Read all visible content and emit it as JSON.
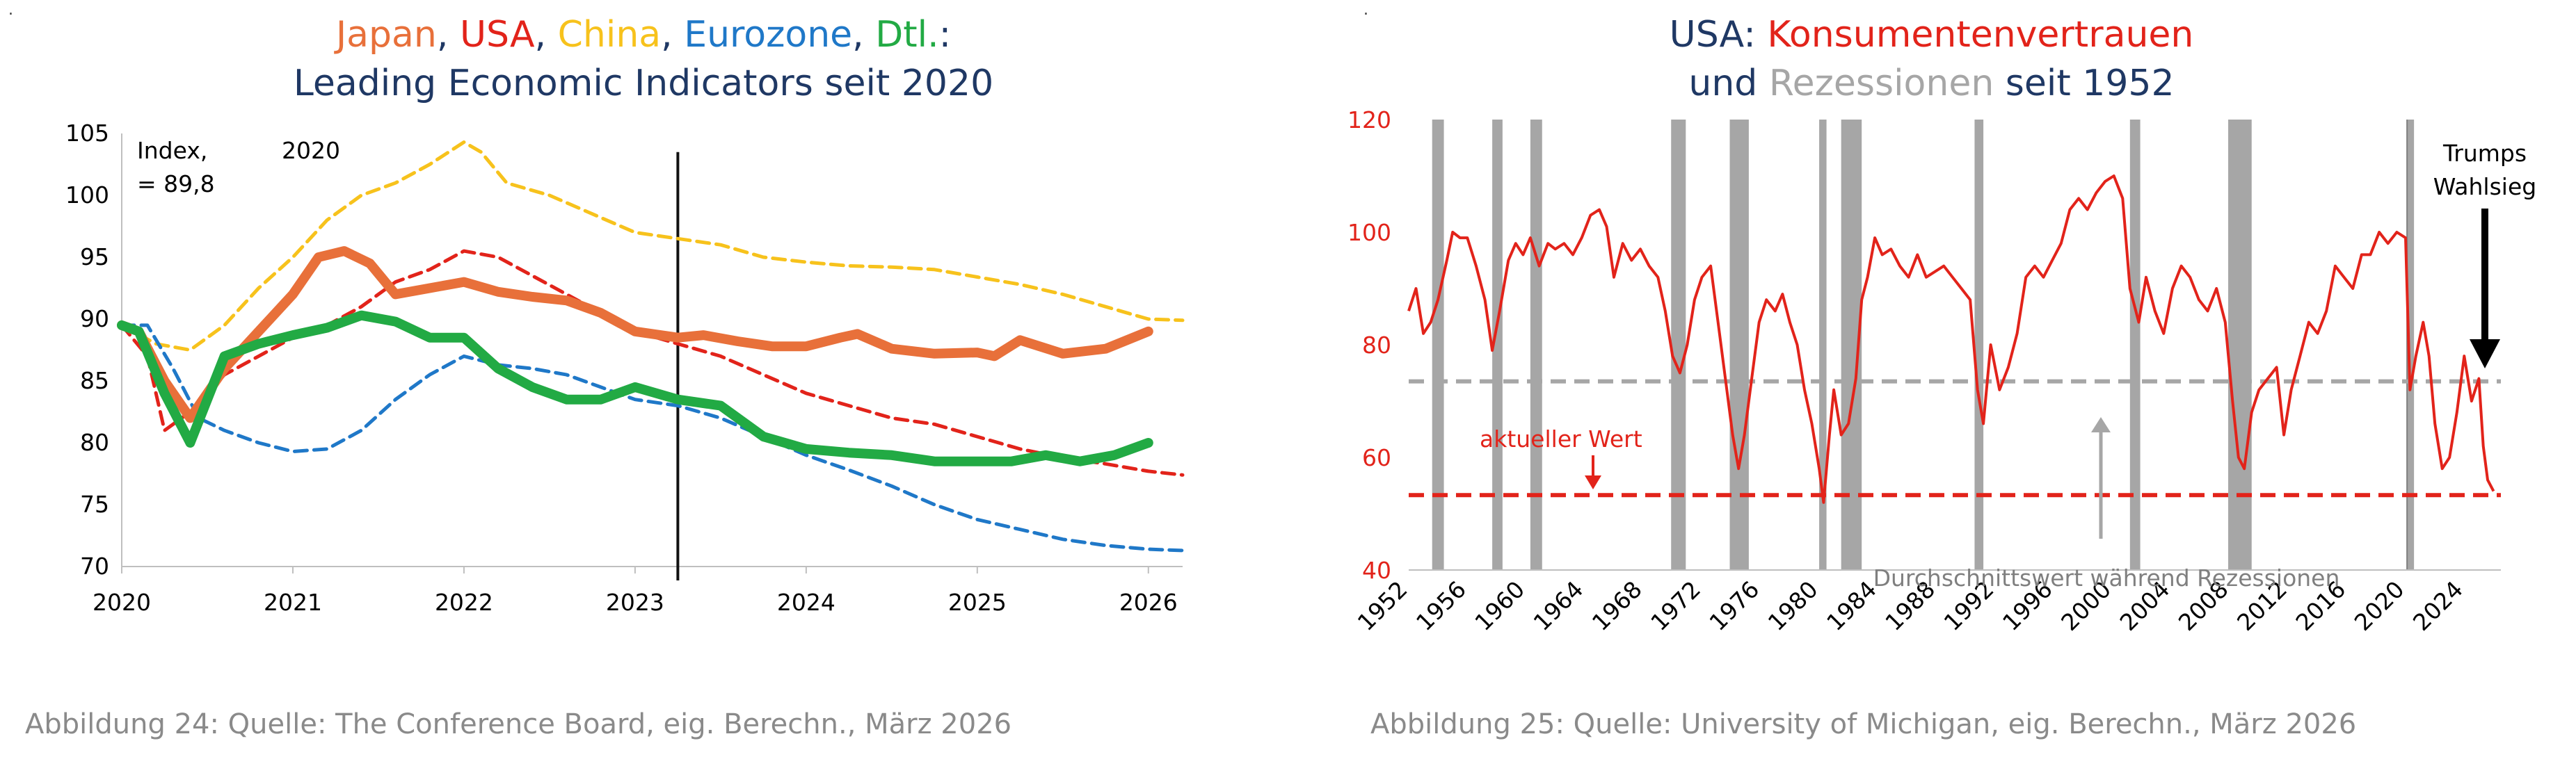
{
  "chart_data": [
    {
      "type": "line",
      "title_parts": [
        {
          "text": "Japan",
          "color": "#e8703a"
        },
        {
          "text": ", ",
          "color": "#1f3864"
        },
        {
          "text": "USA",
          "color": "#e2231a"
        },
        {
          "text": ", ",
          "color": "#1f3864"
        },
        {
          "text": "China",
          "color": "#f7c21c"
        },
        {
          "text": ", ",
          "color": "#1f3864"
        },
        {
          "text": "Eurozone",
          "color": "#1f78c8"
        },
        {
          "text": ", ",
          "color": "#1f3864"
        },
        {
          "text": "Dtl.",
          "color": "#22aa44"
        },
        {
          "text": ":",
          "color": "#1f3864"
        }
      ],
      "title_line2": "Leading Economic Indicators seit 2020",
      "xlim": [
        2020,
        2026.2
      ],
      "ylim": [
        70,
        105
      ],
      "xticks": [
        "2020",
        "2021",
        "2022",
        "2023",
        "2024",
        "2025",
        "2026"
      ],
      "yticks": [
        "70",
        "75",
        "80",
        "85",
        "90",
        "95",
        "100",
        "105"
      ],
      "annotations": {
        "index_line1": "Index,",
        "index_year": "2020",
        "index_line2": "= 89,8"
      },
      "vline_x": 2023.25,
      "series": [
        {
          "name": "China",
          "color": "#f7c21c",
          "style": "dashed",
          "width": 5,
          "x": [
            2020,
            2020.2,
            2020.4,
            2020.6,
            2020.8,
            2021,
            2021.2,
            2021.4,
            2021.6,
            2021.8,
            2022,
            2022.1,
            2022.25,
            2022.5,
            2022.75,
            2023,
            2023.25,
            2023.5,
            2023.75,
            2024,
            2024.25,
            2024.5,
            2024.75,
            2025,
            2025.25,
            2025.5,
            2025.75,
            2026,
            2026.2
          ],
          "values": [
            89.5,
            88.0,
            87.5,
            89.5,
            92.5,
            95.0,
            98.0,
            100.0,
            101.0,
            102.5,
            104.3,
            103.5,
            101.0,
            100.0,
            98.5,
            97.0,
            96.5,
            96.0,
            95.0,
            94.6,
            94.3,
            94.2,
            94.0,
            93.4,
            92.8,
            92.0,
            91.0,
            90.0,
            89.9
          ]
        },
        {
          "name": "USA",
          "color": "#e2231a",
          "style": "dashed",
          "width": 5,
          "x": [
            2020,
            2020.15,
            2020.25,
            2020.4,
            2020.6,
            2020.8,
            2021,
            2021.2,
            2021.4,
            2021.6,
            2021.8,
            2022,
            2022.2,
            2022.4,
            2022.6,
            2022.8,
            2023,
            2023.25,
            2023.5,
            2023.75,
            2024,
            2024.25,
            2024.5,
            2024.75,
            2025,
            2025.25,
            2025.5,
            2025.75,
            2026,
            2026.2
          ],
          "values": [
            89.5,
            87.0,
            81.0,
            82.5,
            85.5,
            87.0,
            88.5,
            89.5,
            91.0,
            93.0,
            94.0,
            95.5,
            95.0,
            93.5,
            92.0,
            90.5,
            89.0,
            88.0,
            87.0,
            85.5,
            84.0,
            83.0,
            82.0,
            81.5,
            80.5,
            79.5,
            78.8,
            78.3,
            77.7,
            77.4
          ]
        },
        {
          "name": "Eurozone",
          "color": "#1f78c8",
          "style": "dashed",
          "width": 5,
          "x": [
            2020,
            2020.15,
            2020.3,
            2020.45,
            2020.6,
            2020.8,
            2021,
            2021.2,
            2021.4,
            2021.6,
            2021.8,
            2022,
            2022.2,
            2022.4,
            2022.6,
            2022.8,
            2023,
            2023.25,
            2023.5,
            2023.75,
            2024,
            2024.25,
            2024.5,
            2024.75,
            2025,
            2025.25,
            2025.5,
            2025.75,
            2026,
            2026.2
          ],
          "values": [
            89.5,
            89.5,
            86.0,
            82.0,
            81.0,
            80.0,
            79.3,
            79.5,
            81.0,
            83.5,
            85.5,
            87.0,
            86.3,
            86.0,
            85.5,
            84.5,
            83.5,
            83.0,
            82.0,
            80.5,
            79.0,
            77.8,
            76.5,
            75.0,
            73.8,
            73.0,
            72.2,
            71.7,
            71.4,
            71.3
          ]
        },
        {
          "name": "Japan",
          "color": "#e8703a",
          "style": "solid",
          "width": 14,
          "x": [
            2020,
            2020.1,
            2020.25,
            2020.4,
            2020.6,
            2020.8,
            2021,
            2021.15,
            2021.3,
            2021.45,
            2021.6,
            2021.8,
            2022,
            2022.2,
            2022.4,
            2022.6,
            2022.8,
            2023,
            2023.25,
            2023.4,
            2023.6,
            2023.8,
            2024,
            2024.2,
            2024.3,
            2024.5,
            2024.75,
            2025,
            2025.1,
            2025.25,
            2025.5,
            2025.75,
            2026
          ],
          "values": [
            89.5,
            89.0,
            85.0,
            82.0,
            86.0,
            89.0,
            92.0,
            95.0,
            95.5,
            94.5,
            92.0,
            92.5,
            93.0,
            92.2,
            91.8,
            91.5,
            90.5,
            89.0,
            88.5,
            88.7,
            88.2,
            87.8,
            87.8,
            88.5,
            88.8,
            87.6,
            87.2,
            87.3,
            87.0,
            88.3,
            87.2,
            87.6,
            89.0
          ]
        },
        {
          "name": "Dtl.",
          "color": "#22aa44",
          "style": "solid",
          "width": 14,
          "x": [
            2020,
            2020.1,
            2020.25,
            2020.4,
            2020.6,
            2020.8,
            2021,
            2021.2,
            2021.4,
            2021.6,
            2021.8,
            2022,
            2022.2,
            2022.4,
            2022.6,
            2022.8,
            2023,
            2023.25,
            2023.5,
            2023.75,
            2024,
            2024.25,
            2024.5,
            2024.75,
            2025,
            2025.2,
            2025.4,
            2025.6,
            2025.8,
            2026
          ],
          "values": [
            89.5,
            89.0,
            84.0,
            80.0,
            87.0,
            88.0,
            88.7,
            89.3,
            90.3,
            89.8,
            88.5,
            88.5,
            86.0,
            84.5,
            83.5,
            83.5,
            84.5,
            83.5,
            83.0,
            80.5,
            79.5,
            79.2,
            79.0,
            78.5,
            78.5,
            78.5,
            79.0,
            78.5,
            79.0,
            80.0
          ]
        }
      ]
    },
    {
      "type": "line",
      "title_parts": [
        {
          "text": "USA: ",
          "color": "#1f3864"
        },
        {
          "text": "Konsumentenvertrauen",
          "color": "#e2231a"
        }
      ],
      "title_line2_parts": [
        {
          "text": "und ",
          "color": "#1f3864"
        },
        {
          "text": "Rezessionen",
          "color": "#a6a6a6"
        },
        {
          "text": " seit 1952",
          "color": "#1f3864"
        }
      ],
      "xlim": [
        1952,
        2026.5
      ],
      "ylim": [
        40,
        120
      ],
      "xticks": [
        "1952",
        "1956",
        "1960",
        "1964",
        "1968",
        "1972",
        "1976",
        "1980",
        "1984",
        "1988",
        "1992",
        "1996",
        "2000",
        "2004",
        "2008",
        "2012",
        "2016",
        "2020",
        "2024"
      ],
      "yticks": [
        "40",
        "60",
        "80",
        "100",
        "120"
      ],
      "recessions": [
        [
          1953.6,
          1954.4
        ],
        [
          1957.7,
          1958.4
        ],
        [
          1960.3,
          1961.1
        ],
        [
          1969.9,
          1970.9
        ],
        [
          1973.9,
          1975.2
        ],
        [
          1980.0,
          1980.5
        ],
        [
          1981.5,
          1982.9
        ],
        [
          1990.6,
          1991.2
        ],
        [
          2001.2,
          2001.9
        ],
        [
          2007.9,
          2009.5
        ],
        [
          2020.1,
          2020.4
        ]
      ],
      "recession_avg": 73.5,
      "current_value": 53.3,
      "annotations": {
        "current_label": "aktueller Wert",
        "avg_label": "Durchschnittswert während Rezessionen",
        "trump_line1": "Trumps",
        "trump_line2": "Wahlsieg"
      },
      "series": [
        {
          "name": "Konsumentenvertrauen",
          "color": "#e2231a",
          "style": "solid",
          "width": 4,
          "x": [
            1952.0,
            1952.5,
            1953.0,
            1953.5,
            1954.0,
            1954.6,
            1955.0,
            1955.5,
            1956.0,
            1956.6,
            1957.2,
            1957.7,
            1958.2,
            1958.8,
            1959.3,
            1959.8,
            1960.3,
            1960.9,
            1961.5,
            1962.0,
            1962.6,
            1963.2,
            1963.8,
            1964.4,
            1965.0,
            1965.5,
            1966.0,
            1966.6,
            1967.2,
            1967.8,
            1968.4,
            1969.0,
            1969.5,
            1970.0,
            1970.5,
            1971.0,
            1971.5,
            1972.0,
            1972.6,
            1973.2,
            1973.7,
            1974.1,
            1974.5,
            1974.9,
            1975.4,
            1975.9,
            1976.4,
            1977.0,
            1977.5,
            1978.0,
            1978.5,
            1979.0,
            1979.5,
            1980.0,
            1980.3,
            1980.7,
            1981.0,
            1981.5,
            1982.0,
            1982.5,
            1982.9,
            1983.3,
            1983.8,
            1984.3,
            1984.9,
            1985.5,
            1986.1,
            1986.7,
            1987.3,
            1987.9,
            1988.5,
            1989.1,
            1989.7,
            1990.3,
            1990.8,
            1991.2,
            1991.7,
            1992.3,
            1992.9,
            1993.5,
            1994.1,
            1994.7,
            1995.3,
            1995.9,
            1996.5,
            1997.1,
            1997.7,
            1998.3,
            1998.9,
            1999.5,
            2000.1,
            2000.7,
            2001.2,
            2001.8,
            2002.3,
            2002.9,
            2003.5,
            2004.1,
            2004.7,
            2005.3,
            2005.9,
            2006.5,
            2007.1,
            2007.7,
            2008.2,
            2008.6,
            2009.0,
            2009.5,
            2010.0,
            2010.6,
            2011.2,
            2011.7,
            2012.2,
            2012.8,
            2013.4,
            2014.0,
            2014.6,
            2015.2,
            2015.8,
            2016.4,
            2017.0,
            2017.6,
            2018.2,
            2018.8,
            2019.4,
            2020.0,
            2020.3,
            2020.7,
            2021.2,
            2021.6,
            2022.0,
            2022.5,
            2023.0,
            2023.5,
            2024.0,
            2024.5,
            2025.0,
            2025.3,
            2025.6,
            2026.0
          ],
          "values": [
            86,
            90,
            82,
            84,
            88,
            95,
            100,
            99,
            99,
            94,
            88,
            79,
            86,
            95,
            98,
            96,
            99,
            94,
            98,
            97,
            98,
            96,
            99,
            103,
            104,
            101,
            92,
            98,
            95,
            97,
            94,
            92,
            86,
            78,
            75,
            80,
            88,
            92,
            94,
            82,
            72,
            64,
            58,
            64,
            74,
            84,
            88,
            86,
            89,
            84,
            80,
            72,
            66,
            58,
            52,
            64,
            72,
            64,
            66,
            74,
            88,
            92,
            99,
            96,
            97,
            94,
            92,
            96,
            92,
            93,
            94,
            92,
            90,
            88,
            72,
            66,
            80,
            72,
            76,
            82,
            92,
            94,
            92,
            95,
            98,
            104,
            106,
            104,
            107,
            109,
            110,
            106,
            90,
            84,
            92,
            86,
            82,
            90,
            94,
            92,
            88,
            86,
            90,
            84,
            70,
            60,
            58,
            68,
            72,
            74,
            76,
            64,
            72,
            78,
            84,
            82,
            86,
            94,
            92,
            90,
            96,
            96,
            100,
            98,
            100,
            99,
            72,
            78,
            84,
            78,
            66,
            58,
            60,
            68,
            78,
            70,
            74,
            62,
            56,
            54
          ]
        }
      ]
    }
  ],
  "captions": {
    "left": "Abbildung 24: Quelle: The Conference Board, eig. Berechn., März 2026",
    "right": "Abbildung 25: Quelle: University of Michigan, eig. Berechn., März 2026"
  },
  "marks": {
    "left": ".",
    "right": "."
  }
}
